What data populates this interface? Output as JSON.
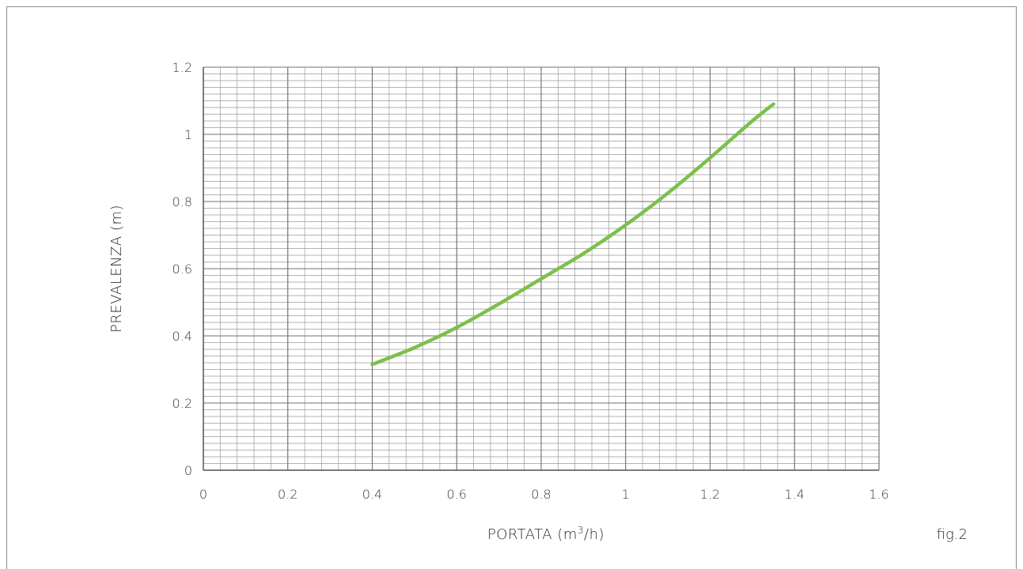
{
  "chart_data": {
    "type": "line",
    "title": "",
    "xlabel_main": "PORTATA (m",
    "xlabel_sup": "3",
    "xlabel_tail": "/h)",
    "ylabel": "PREVALENZA (m)",
    "figure_label": "fig.2",
    "xlim": [
      0,
      1.6
    ],
    "ylim": [
      0,
      1.2
    ],
    "x_ticks": [
      "0",
      "0.2",
      "0.4",
      "0.6",
      "0.8",
      "1",
      "1.2",
      "1.4",
      "1.6"
    ],
    "y_ticks": [
      "0",
      "0.2",
      "0.4",
      "0.6",
      "0.8",
      "1",
      "1.2"
    ],
    "grid": true,
    "line_color": "#7cc04b",
    "series": [
      {
        "x": [
          0.4,
          0.5,
          0.6,
          0.7,
          0.8,
          0.9,
          1.0,
          1.1,
          1.2,
          1.3,
          1.35
        ],
        "y": [
          0.315,
          0.365,
          0.425,
          0.495,
          0.57,
          0.645,
          0.73,
          0.825,
          0.93,
          1.04,
          1.09
        ]
      }
    ]
  }
}
